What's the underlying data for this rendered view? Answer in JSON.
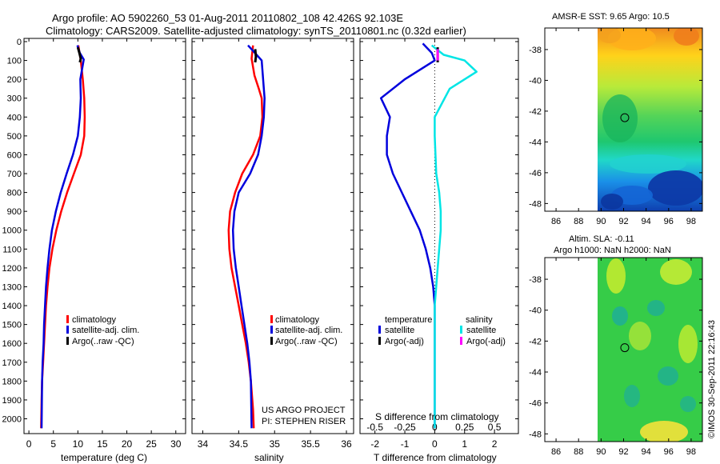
{
  "titles": {
    "line1": "Argo profile: AO 5902260_53 01-Aug-2011 20110802_108 42.426S 92.103E",
    "line2": "Climatology: CARS2009. Satellite-adjusted climatology: synTS_20110801.nc (0.32d earlier)"
  },
  "colors": {
    "climatology": "#ff0000",
    "satellite": "#0000dd",
    "argo": "#000000",
    "sal_satellite": "#00e5e5",
    "sal_argo": "#ff00ff"
  },
  "depth_axis": {
    "ticks": [
      0,
      100,
      200,
      300,
      400,
      500,
      600,
      700,
      800,
      900,
      1000,
      1100,
      1200,
      1300,
      1400,
      1500,
      1600,
      1700,
      1800,
      1900,
      2000
    ],
    "range": [
      0,
      2070
    ]
  },
  "chart_data": [
    {
      "type": "line",
      "id": "temperature",
      "xlabel": "temperature (deg C)",
      "xlim": [
        -1,
        32
      ],
      "xticks": [
        0,
        5,
        10,
        15,
        20,
        25,
        30
      ],
      "ylim": [
        0,
        2070
      ],
      "legend": [
        "climatology",
        "satellite-adj. clim.",
        "Argo(..raw -QC)"
      ],
      "series": [
        {
          "name": "climatology",
          "color_key": "climatology",
          "x": [
            10.1,
            10.6,
            11.0,
            11.3,
            11.4,
            11.3,
            10.6,
            9.2,
            7.8,
            6.6,
            5.6,
            4.8,
            4.2,
            3.8,
            3.5,
            3.3,
            3.1,
            2.9,
            2.7,
            2.6,
            2.5
          ],
          "y": [
            20,
            100,
            200,
            300,
            400,
            500,
            600,
            700,
            800,
            900,
            1000,
            1100,
            1200,
            1300,
            1400,
            1500,
            1600,
            1700,
            1800,
            1900,
            2050
          ]
        },
        {
          "name": "satellite-adj. clim.",
          "color_key": "satellite",
          "x": [
            9.9,
            10.4,
            11.2,
            10.5,
            10.6,
            10.4,
            10.0,
            9.0,
            7.7,
            6.5,
            5.5,
            4.7,
            4.2,
            3.8,
            3.5,
            3.3,
            3.1,
            3.0,
            2.8,
            2.7,
            2.6
          ],
          "y": [
            20,
            60,
            95,
            200,
            300,
            400,
            500,
            600,
            700,
            800,
            900,
            1000,
            1100,
            1200,
            1300,
            1400,
            1500,
            1600,
            1700,
            1800,
            2050
          ]
        },
        {
          "name": "Argo(..raw -QC)",
          "color_key": "argo",
          "x": [
            10.0,
            10.3,
            10.6,
            10.4
          ],
          "y": [
            30,
            60,
            90,
            110
          ]
        }
      ]
    },
    {
      "type": "line",
      "id": "salinity",
      "xlabel": "salinity",
      "xlim": [
        33.85,
        36.1
      ],
      "xticks": [
        34,
        34.5,
        35,
        35.5,
        36
      ],
      "ylim": [
        0,
        2070
      ],
      "legend": [
        "climatology",
        "satellite-adj. clim.",
        "Argo(..raw -QC)"
      ],
      "series": [
        {
          "name": "climatology",
          "color_key": "climatology",
          "x": [
            34.7,
            34.68,
            34.72,
            34.78,
            34.82,
            34.83,
            34.8,
            34.7,
            34.55,
            34.45,
            34.38,
            34.36,
            34.37,
            34.4,
            34.45,
            34.5,
            34.55,
            34.6,
            34.64,
            34.67,
            34.7,
            34.71
          ],
          "y": [
            20,
            90,
            180,
            250,
            300,
            400,
            500,
            600,
            700,
            800,
            900,
            1000,
            1100,
            1200,
            1300,
            1400,
            1500,
            1600,
            1700,
            1800,
            1950,
            2050
          ]
        },
        {
          "name": "satellite-adj. clim.",
          "color_key": "satellite",
          "x": [
            34.63,
            34.75,
            34.82,
            34.86,
            34.85,
            34.82,
            34.77,
            34.66,
            34.5,
            34.44,
            34.42,
            34.43,
            34.46,
            34.5,
            34.54,
            34.58,
            34.62,
            34.65,
            34.67,
            34.68
          ],
          "y": [
            20,
            70,
            100,
            300,
            400,
            500,
            600,
            700,
            800,
            900,
            1000,
            1100,
            1200,
            1300,
            1400,
            1500,
            1600,
            1700,
            1800,
            2050
          ]
        },
        {
          "name": "Argo(..raw -QC)",
          "color_key": "argo",
          "x": [
            34.73,
            34.74,
            34.73
          ],
          "y": [
            40,
            80,
            110
          ]
        }
      ]
    },
    {
      "type": "line",
      "id": "difference",
      "xlabel": "T difference from climatology",
      "xlim": [
        -2.5,
        2.8
      ],
      "xticks": [
        -2,
        -1,
        0,
        1,
        2
      ],
      "top_label": "S difference from climatology",
      "top_ticks": [
        -0.5,
        -0.25,
        0,
        0.25,
        0.5
      ],
      "ylim": [
        0,
        2070
      ],
      "legend_headers": [
        "temperature",
        "salinity"
      ],
      "legend": [
        "satellite",
        "Argo(-adj)",
        "satellite",
        "Argo(-adj)"
      ],
      "series": [
        {
          "name": "temperature satellite",
          "color_key": "satellite",
          "x": [
            -0.4,
            -0.1,
            0.0,
            -1.0,
            -1.8,
            -1.5,
            -1.6,
            -1.6,
            -1.4,
            -1.1,
            -0.8,
            -0.5,
            -0.3,
            -0.15,
            -0.05,
            0.0,
            0.0,
            0.0,
            0.0
          ],
          "y": [
            10,
            60,
            100,
            200,
            300,
            400,
            500,
            600,
            700,
            800,
            900,
            1000,
            1100,
            1200,
            1300,
            1400,
            1600,
            1800,
            2050
          ]
        },
        {
          "name": "salinity satellite",
          "color_key": "sal_satellite",
          "x": [
            -0.1,
            0.3,
            1.0,
            1.4,
            0.5,
            0.0,
            0.0,
            0.05,
            0.15,
            0.2,
            0.2,
            0.15,
            0.1,
            0.0,
            0.0,
            0.0
          ],
          "y": [
            20,
            70,
            100,
            160,
            250,
            400,
            500,
            700,
            800,
            900,
            1000,
            1100,
            1200,
            1400,
            1800,
            2050
          ]
        },
        {
          "name": "temperature Argo(-adj)",
          "color_key": "argo",
          "x": [
            0.1,
            0.1
          ],
          "y": [
            30,
            110
          ]
        },
        {
          "name": "salinity Argo(-adj)",
          "color_key": "sal_argo",
          "x": [
            0.1,
            0.1
          ],
          "y": [
            40,
            100
          ]
        }
      ]
    }
  ],
  "credits": {
    "line1": "US ARGO PROJECT",
    "line2": "PI: STEPHEN RISER"
  },
  "maps": {
    "sst_title": "AMSR-E SST: 9.65 Argo: 10.5",
    "sla_title1": "Altim. SLA: -0.11",
    "sla_title2": "Argo h1000: NaN h2000: NaN",
    "lat_ticks": [
      "-38",
      "-40",
      "-42",
      "-44",
      "-46",
      "-48"
    ],
    "lon_ticks": [
      "86",
      "88",
      "90",
      "92",
      "94",
      "96",
      "98"
    ],
    "argo_position": {
      "lon": 92.103,
      "lat": -42.426
    },
    "lon_range": [
      85,
      99
    ],
    "lat_range": [
      -36.6,
      -48.5
    ],
    "data_lon_start": 90
  },
  "watermark": "©IMOS 30-Sep-2011 22:16:43"
}
